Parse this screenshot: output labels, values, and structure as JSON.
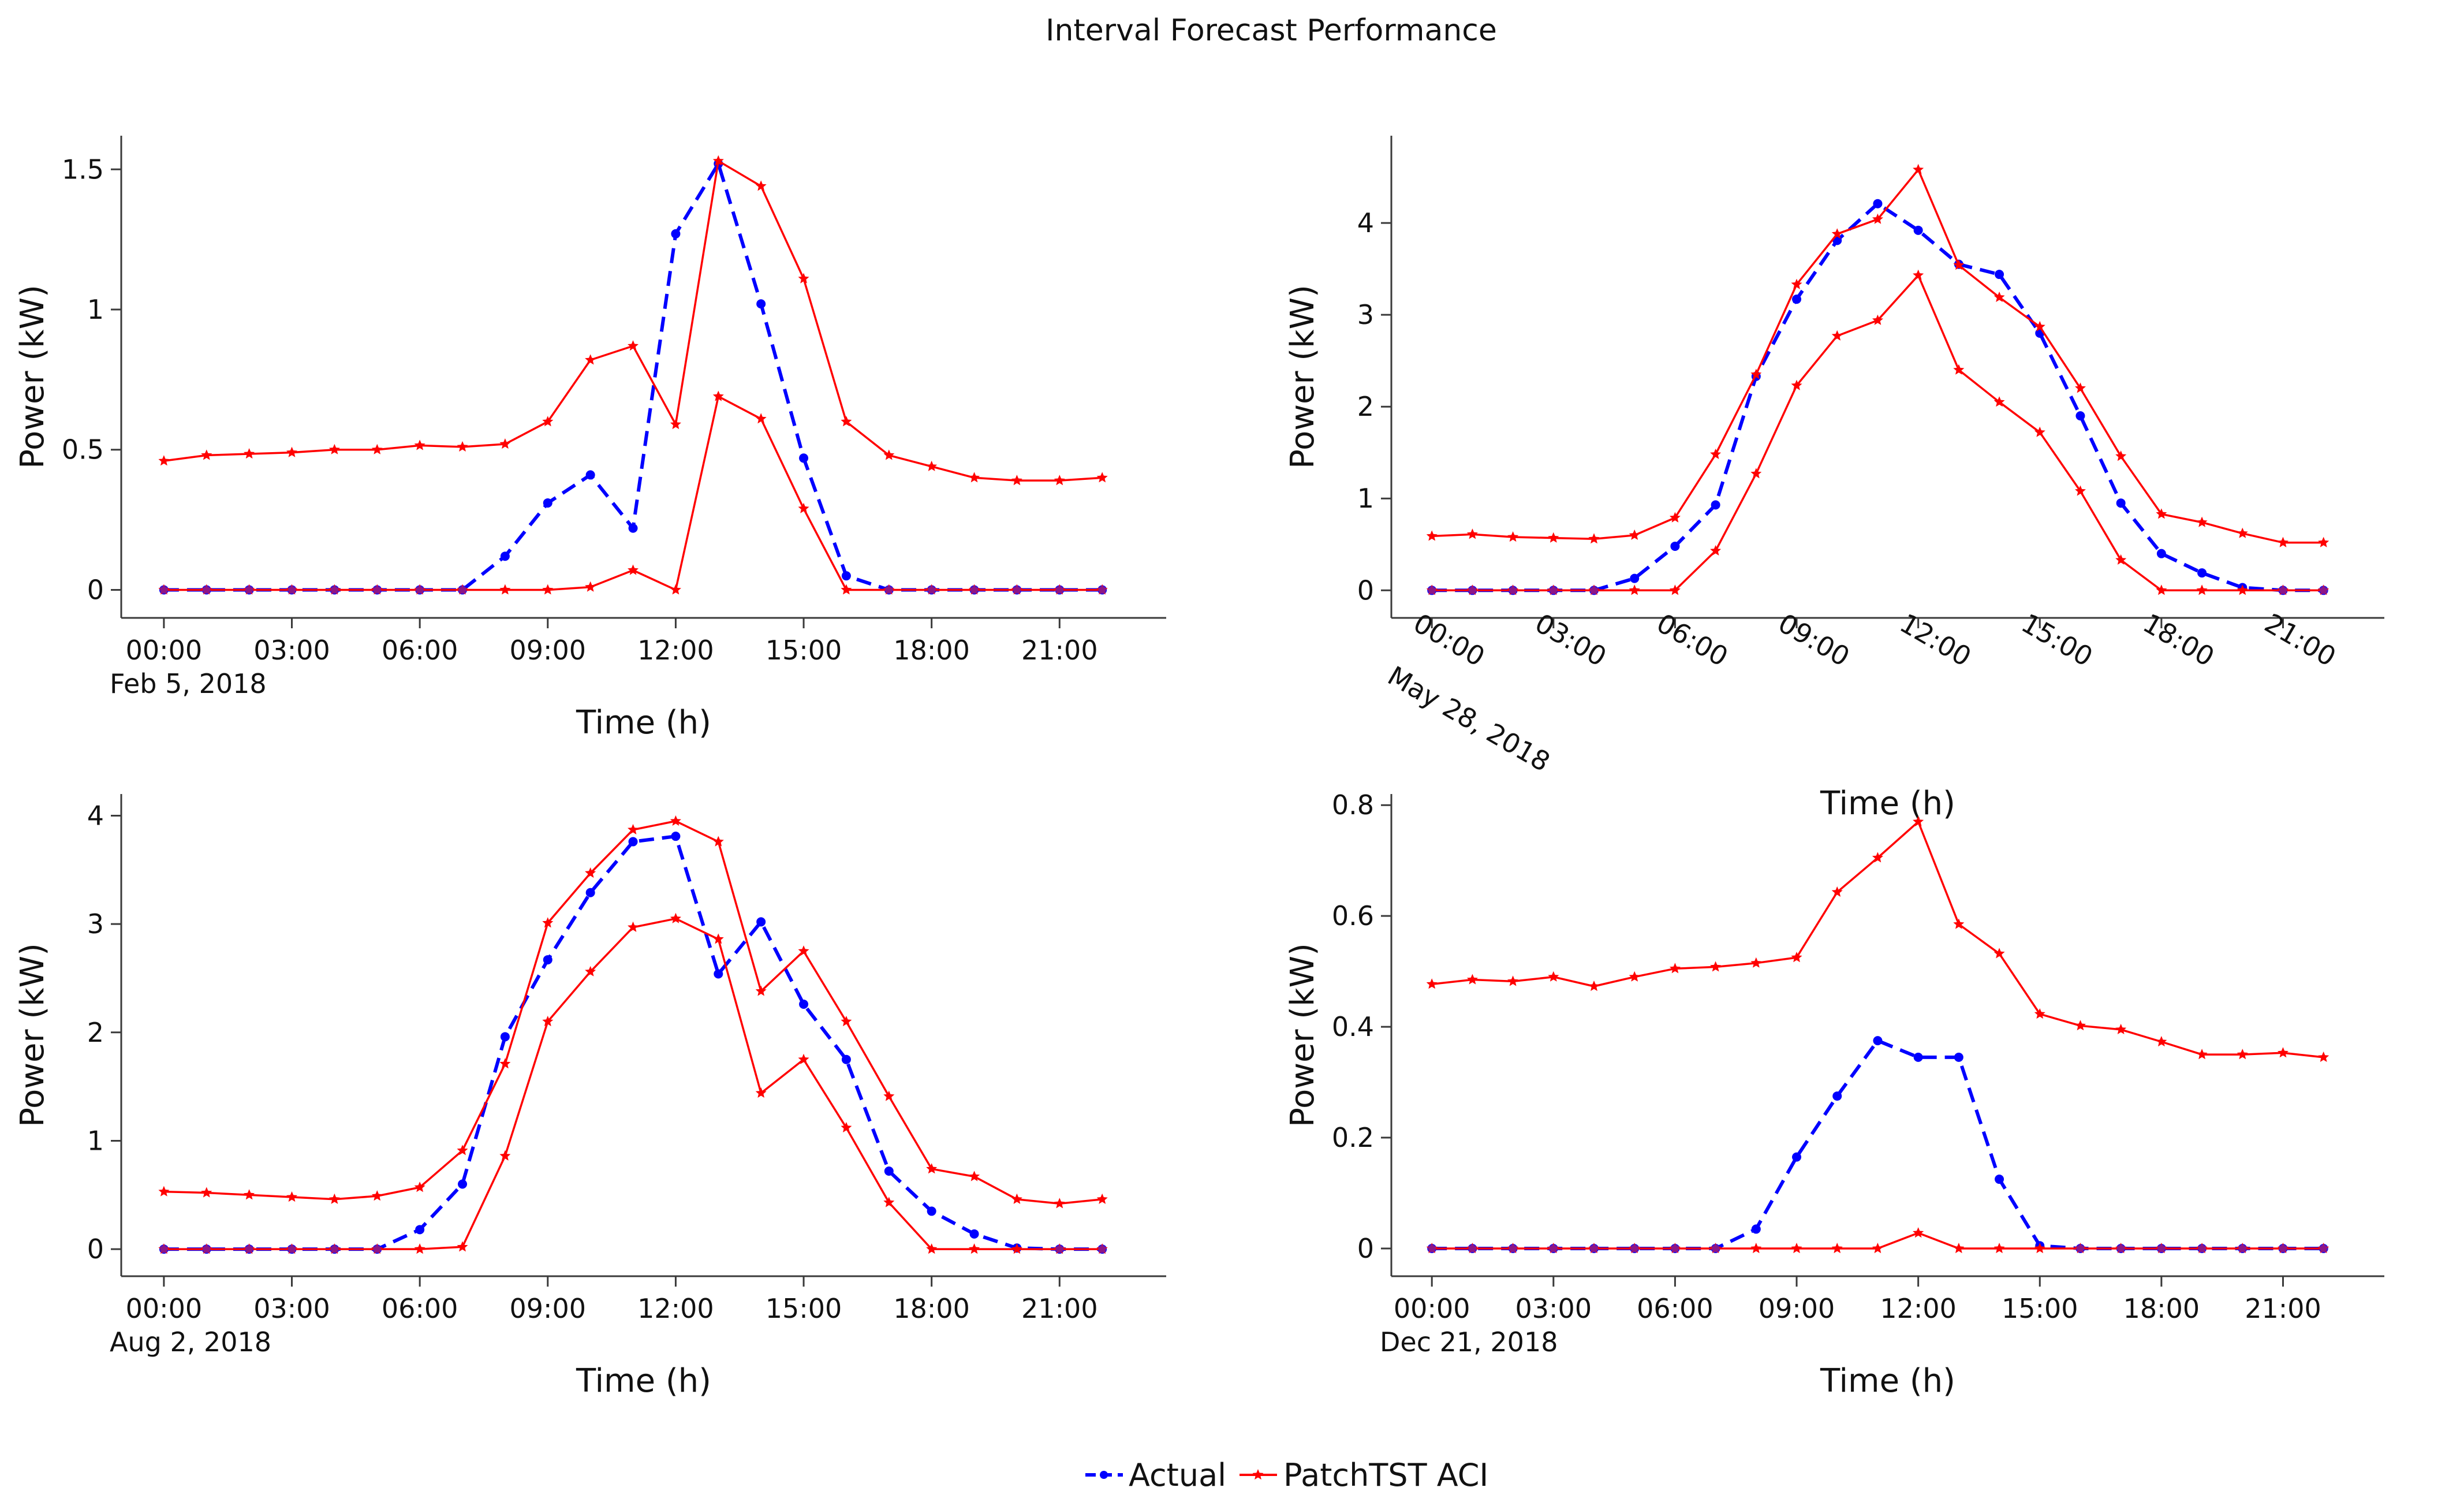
{
  "figure": {
    "title": "Interval Forecast Performance",
    "legend": {
      "placement": "bottom-center",
      "items": [
        {
          "label": "Actual",
          "color": "#0000ff",
          "style": "dashed",
          "marker": "dot"
        },
        {
          "label": "PatchTST ACI",
          "color": "#ff0000",
          "style": "solid",
          "marker": "star"
        }
      ]
    }
  },
  "chart_data": [
    {
      "type": "line",
      "date_label": "Feb 5, 2018",
      "xlabel": "Time (h)",
      "ylabel": "Power (kW)",
      "x": [
        0,
        1,
        2,
        3,
        4,
        5,
        6,
        7,
        8,
        9,
        10,
        11,
        12,
        13,
        14,
        15,
        16,
        17,
        18,
        19,
        20,
        21,
        22
      ],
      "xticks": [
        "00:00",
        "03:00",
        "06:00",
        "09:00",
        "12:00",
        "15:00",
        "18:00",
        "21:00"
      ],
      "xtick_values": [
        0,
        3,
        6,
        9,
        12,
        15,
        18,
        21
      ],
      "xlim": [
        -1,
        23.5
      ],
      "ylim": [
        -0.1,
        1.62
      ],
      "yticks": [
        "0",
        "0.5",
        "1",
        "1.5"
      ],
      "ytick_values": [
        0,
        0.5,
        1,
        1.5
      ],
      "tilted_ticks": false,
      "grid": false,
      "series": [
        {
          "name": "Actual",
          "color": "#0000ff",
          "style": "dashed",
          "marker": "dot",
          "values": [
            0,
            0,
            0,
            0,
            0,
            0,
            0,
            0,
            0.12,
            0.31,
            0.41,
            0.22,
            1.27,
            1.52,
            1.02,
            0.47,
            0.05,
            0,
            0,
            0,
            0,
            0,
            0
          ]
        },
        {
          "name": "PatchTST ACI",
          "color": "#ff0000",
          "style": "solid",
          "marker": "star",
          "values": [
            0.46,
            0.48,
            0.485,
            0.49,
            0.5,
            0.5,
            0.515,
            0.51,
            0.52,
            0.6,
            0.82,
            0.87,
            0.59,
            1.53,
            1.44,
            1.11,
            0.6,
            0.48,
            0.44,
            0.4,
            0.39,
            0.39,
            0.4
          ]
        },
        {
          "name": "",
          "color": "#ff0000",
          "style": "solid",
          "marker": "star",
          "values": [
            0,
            0,
            0,
            0,
            0,
            0,
            0,
            0,
            0,
            0,
            0.01,
            0.07,
            0,
            0.69,
            0.61,
            0.29,
            0,
            0,
            0,
            0,
            0,
            0,
            0
          ]
        }
      ]
    },
    {
      "type": "line",
      "date_label": "May 28, 2018",
      "xlabel": "Time (h)",
      "ylabel": "Power (kW)",
      "x": [
        0,
        1,
        2,
        3,
        4,
        5,
        6,
        7,
        8,
        9,
        10,
        11,
        12,
        13,
        14,
        15,
        16,
        17,
        18,
        19,
        20,
        21,
        22
      ],
      "xticks": [
        "00:00",
        "03:00",
        "06:00",
        "09:00",
        "12:00",
        "15:00",
        "18:00",
        "21:00"
      ],
      "xtick_values": [
        0,
        3,
        6,
        9,
        12,
        15,
        18,
        21
      ],
      "xlim": [
        -1,
        23.5
      ],
      "ylim": [
        -0.3,
        4.95
      ],
      "yticks": [
        "0",
        "1",
        "2",
        "3",
        "4"
      ],
      "ytick_values": [
        0,
        1,
        2,
        3,
        4
      ],
      "tilted_ticks": true,
      "grid": false,
      "series": [
        {
          "name": "Actual",
          "color": "#0000ff",
          "style": "dashed",
          "marker": "dot",
          "values": [
            0,
            0,
            0,
            0,
            0,
            0.13,
            0.48,
            0.93,
            2.33,
            3.17,
            3.81,
            4.21,
            3.92,
            3.55,
            3.44,
            2.8,
            1.9,
            0.95,
            0.4,
            0.19,
            0.03,
            0,
            0
          ]
        },
        {
          "name": "PatchTST ACI",
          "color": "#ff0000",
          "style": "solid",
          "marker": "star",
          "values": [
            0.59,
            0.61,
            0.58,
            0.57,
            0.56,
            0.6,
            0.79,
            1.48,
            2.35,
            3.33,
            3.88,
            4.04,
            4.58,
            3.54,
            3.19,
            2.87,
            2.2,
            1.46,
            0.83,
            0.74,
            0.62,
            0.52,
            0.52
          ]
        },
        {
          "name": "",
          "color": "#ff0000",
          "style": "solid",
          "marker": "star",
          "values": [
            0,
            0,
            0,
            0,
            0,
            0,
            0,
            0.43,
            1.27,
            2.23,
            2.77,
            2.94,
            3.43,
            2.4,
            2.05,
            1.72,
            1.08,
            0.33,
            0,
            0,
            0,
            0,
            0
          ]
        }
      ]
    },
    {
      "type": "line",
      "date_label": "Aug 2, 2018",
      "xlabel": "Time (h)",
      "ylabel": "Power (kW)",
      "x": [
        0,
        1,
        2,
        3,
        4,
        5,
        6,
        7,
        8,
        9,
        10,
        11,
        12,
        13,
        14,
        15,
        16,
        17,
        18,
        19,
        20,
        21,
        22
      ],
      "xticks": [
        "00:00",
        "03:00",
        "06:00",
        "09:00",
        "12:00",
        "15:00",
        "18:00",
        "21:00"
      ],
      "xtick_values": [
        0,
        3,
        6,
        9,
        12,
        15,
        18,
        21
      ],
      "xlim": [
        -1,
        23.5
      ],
      "ylim": [
        -0.25,
        4.2
      ],
      "yticks": [
        "0",
        "1",
        "2",
        "3",
        "4"
      ],
      "ytick_values": [
        0,
        1,
        2,
        3,
        4
      ],
      "tilted_ticks": false,
      "grid": false,
      "series": [
        {
          "name": "Actual",
          "color": "#0000ff",
          "style": "dashed",
          "marker": "dot",
          "values": [
            0,
            0,
            0,
            0,
            0,
            0,
            0.18,
            0.6,
            1.96,
            2.67,
            3.29,
            3.76,
            3.81,
            2.54,
            3.02,
            2.26,
            1.75,
            0.72,
            0.35,
            0.14,
            0.01,
            0,
            0
          ]
        },
        {
          "name": "PatchTST ACI",
          "color": "#ff0000",
          "style": "solid",
          "marker": "star",
          "values": [
            0.53,
            0.52,
            0.5,
            0.48,
            0.46,
            0.49,
            0.57,
            0.91,
            1.71,
            3.01,
            3.47,
            3.87,
            3.95,
            3.76,
            2.38,
            2.75,
            2.1,
            1.41,
            0.74,
            0.67,
            0.46,
            0.42,
            0.46
          ]
        },
        {
          "name": "",
          "color": "#ff0000",
          "style": "solid",
          "marker": "star",
          "values": [
            0,
            0,
            0,
            0,
            0,
            0,
            0,
            0.02,
            0.86,
            2.1,
            2.56,
            2.97,
            3.05,
            2.86,
            1.44,
            1.75,
            1.12,
            0.43,
            0,
            0,
            0,
            0,
            0
          ]
        }
      ]
    },
    {
      "type": "line",
      "date_label": "Dec 21, 2018",
      "xlabel": "Time (h)",
      "ylabel": "Power (kW)",
      "x": [
        0,
        1,
        2,
        3,
        4,
        5,
        6,
        7,
        8,
        9,
        10,
        11,
        12,
        13,
        14,
        15,
        16,
        17,
        18,
        19,
        20,
        21,
        22
      ],
      "xticks": [
        "00:00",
        "03:00",
        "06:00",
        "09:00",
        "12:00",
        "15:00",
        "18:00",
        "21:00"
      ],
      "xtick_values": [
        0,
        3,
        6,
        9,
        12,
        15,
        18,
        21
      ],
      "xlim": [
        -1,
        23.5
      ],
      "ylim": [
        -0.05,
        0.82
      ],
      "yticks": [
        "0",
        "0.2",
        "0.4",
        "0.6",
        "0.8"
      ],
      "ytick_values": [
        0,
        0.2,
        0.4,
        0.6,
        0.8
      ],
      "tilted_ticks": false,
      "grid": false,
      "series": [
        {
          "name": "Actual",
          "color": "#0000ff",
          "style": "dashed",
          "marker": "dot",
          "values": [
            0,
            0,
            0,
            0,
            0,
            0,
            0,
            0,
            0.035,
            0.165,
            0.275,
            0.375,
            0.345,
            0.345,
            0.125,
            0.005,
            0,
            0,
            0,
            0,
            0,
            0,
            0
          ]
        },
        {
          "name": "PatchTST ACI",
          "color": "#ff0000",
          "style": "solid",
          "marker": "star",
          "values": [
            0.477,
            0.485,
            0.482,
            0.49,
            0.473,
            0.49,
            0.505,
            0.508,
            0.515,
            0.525,
            0.643,
            0.705,
            0.77,
            0.585,
            0.532,
            0.423,
            0.402,
            0.395,
            0.373,
            0.35,
            0.35,
            0.353,
            0.345
          ]
        },
        {
          "name": "",
          "color": "#ff0000",
          "style": "solid",
          "marker": "star",
          "values": [
            0,
            0,
            0,
            0,
            0,
            0,
            0,
            0,
            0,
            0,
            0,
            0,
            0.028,
            0,
            0,
            0,
            0,
            0,
            0,
            0,
            0,
            0,
            0
          ]
        }
      ]
    }
  ]
}
